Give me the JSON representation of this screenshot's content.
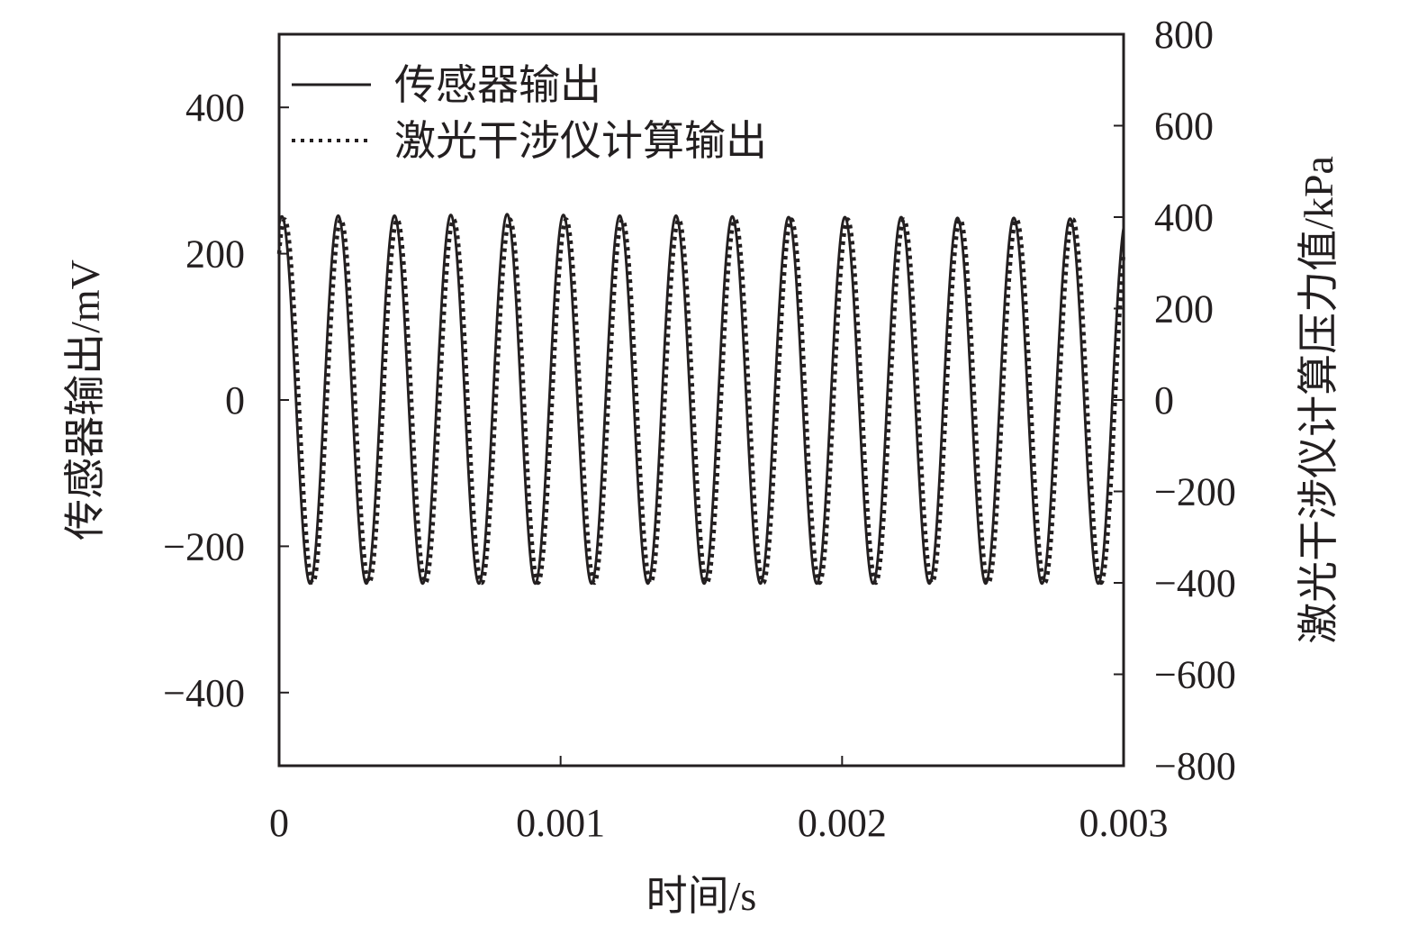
{
  "chart_data": {
    "type": "line",
    "xlabel": "时间/s",
    "ylabel_left": "传感器输出/mV",
    "ylabel_right": "激光干涉仪计算压力值/kPa",
    "xlim": [
      0,
      0.003
    ],
    "ylim_left": [
      -500,
      500
    ],
    "ylim_right": [
      -800,
      800
    ],
    "x_ticks": [
      0,
      0.001,
      0.002,
      0.003
    ],
    "x_tick_labels": [
      "0",
      "0.001",
      "0.002",
      "0.003"
    ],
    "y_left_ticks": [
      -400,
      -200,
      0,
      200,
      400
    ],
    "y_left_tick_labels": [
      "−400",
      "−200",
      "0",
      "200",
      "400"
    ],
    "y_right_ticks": [
      -800,
      -600,
      -400,
      -200,
      0,
      200,
      400,
      600,
      800
    ],
    "y_right_tick_labels": [
      "−800",
      "−600",
      "−400",
      "−200",
      "0",
      "200",
      "400",
      "600",
      "800"
    ],
    "legend_position": "top-left",
    "grid": false,
    "series": [
      {
        "name": "传感器输出",
        "axis": "left",
        "style": "solid",
        "color": "#231f20",
        "waveform": "sine",
        "frequency_hz": 5000,
        "amplitude": 251,
        "peak_times": [
          1e-05,
          0.00021,
          0.00041,
          0.00061,
          0.00081,
          0.00101,
          0.00121,
          0.00141,
          0.00161,
          0.00181,
          0.00201,
          0.00221,
          0.00241,
          0.00261,
          0.00281
        ],
        "peak_values": [
          251,
          252,
          252,
          253,
          254,
          253,
          252,
          252,
          251,
          250,
          250,
          250,
          249,
          249,
          248
        ],
        "trough_values": [
          -251,
          -251,
          -251,
          -251,
          -251,
          -251,
          -251,
          -251,
          -251,
          -251,
          -251,
          -251,
          -251,
          -251,
          -251
        ]
      },
      {
        "name": "激光干涉仪计算输出",
        "axis": "right",
        "style": "dotted",
        "color": "#231f20",
        "waveform": "sine",
        "frequency_hz": 5000,
        "amplitude": 400,
        "peak_times": [
          2e-05,
          0.00022,
          0.00042,
          0.00062,
          0.00082,
          0.00102,
          0.00122,
          0.00142,
          0.00162,
          0.00182,
          0.00202,
          0.00222,
          0.00242,
          0.00262,
          0.00282
        ],
        "peak_values": [
          395,
          395,
          395,
          395,
          395,
          395,
          395,
          395,
          395,
          395,
          395,
          395,
          395,
          395,
          395
        ],
        "trough_values": [
          -400,
          -400,
          -400,
          -400,
          -400,
          -400,
          -400,
          -400,
          -400,
          -400,
          -400,
          -400,
          -400,
          -400,
          -400
        ]
      }
    ]
  }
}
